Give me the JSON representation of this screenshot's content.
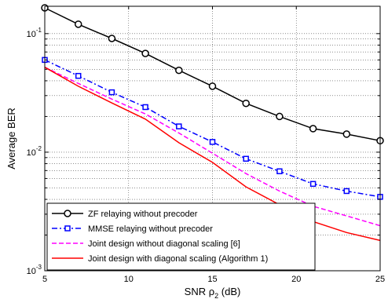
{
  "chart_data": {
    "type": "line",
    "xlabel": "SNR ρ",
    "xlabel_sub": "2",
    "xlabel_unit": " (dB)",
    "ylabel": "Average BER",
    "xlim": [
      5,
      25
    ],
    "ylim": [
      0.001,
      0.17
    ],
    "yscale": "log",
    "grid": "major and minor, y-axis dotted",
    "legend_position": "bottom-left",
    "x_ticks": [
      {
        "value": 5,
        "label": "5"
      },
      {
        "value": 10,
        "label": "10"
      },
      {
        "value": 15,
        "label": "15"
      },
      {
        "value": 20,
        "label": "20"
      },
      {
        "value": 25,
        "label": "25"
      }
    ],
    "y_ticks": [
      {
        "value": 0.001,
        "base": "10",
        "exp": "-3"
      },
      {
        "value": 0.01,
        "base": "10",
        "exp": "-2"
      },
      {
        "value": 0.1,
        "base": "10",
        "exp": "-1"
      }
    ],
    "series": [
      {
        "name": "ZF relaying without precoder",
        "color": "#000000",
        "dash": "solid",
        "marker": "circle",
        "x": [
          5,
          7,
          9,
          11,
          13,
          15,
          17,
          19,
          21,
          23,
          25
        ],
        "y": [
          0.165,
          0.12,
          0.091,
          0.068,
          0.049,
          0.036,
          0.0258,
          0.02,
          0.0158,
          0.0142,
          0.0125
        ]
      },
      {
        "name": "MMSE relaying without precoder",
        "color": "#0000ff",
        "dash": "dashdot",
        "marker": "square",
        "x": [
          5,
          7,
          9,
          11,
          13,
          15,
          17,
          19,
          21,
          23,
          25
        ],
        "y": [
          0.06,
          0.044,
          0.032,
          0.024,
          0.0165,
          0.0122,
          0.0088,
          0.0069,
          0.0054,
          0.0047,
          0.0042
        ]
      },
      {
        "name": "Joint design without diagonal scaling [6]",
        "color": "#ff00ff",
        "dash": "dashed",
        "marker": "none",
        "x": [
          5,
          7,
          9,
          11,
          13,
          15,
          17,
          19,
          21,
          23,
          25
        ],
        "y": [
          0.052,
          0.038,
          0.028,
          0.021,
          0.0145,
          0.0098,
          0.0066,
          0.0047,
          0.0035,
          0.0029,
          0.0024
        ]
      },
      {
        "name": "Joint design with diagonal scaling (Algorithm 1)",
        "color": "#ff0000",
        "dash": "solid",
        "marker": "none",
        "x": [
          5,
          7,
          9,
          11,
          13,
          15,
          17,
          19,
          21,
          23,
          25
        ],
        "y": [
          0.052,
          0.036,
          0.026,
          0.019,
          0.012,
          0.0082,
          0.0051,
          0.0036,
          0.0026,
          0.0021,
          0.0018
        ]
      }
    ]
  }
}
